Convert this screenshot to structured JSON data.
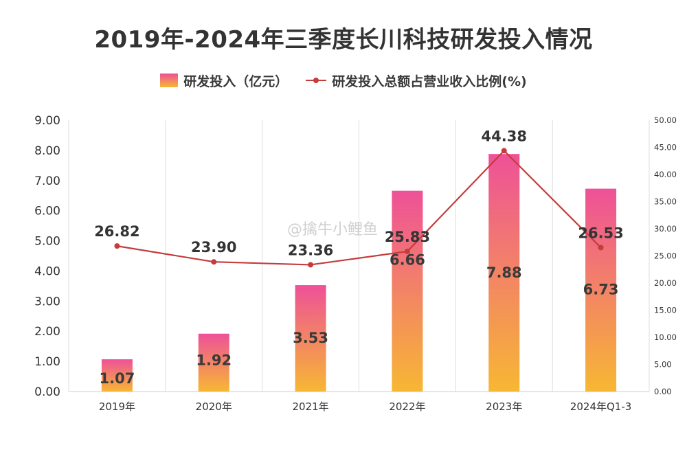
{
  "watermark": "@擒牛小鲤鱼",
  "chart_data": {
    "type": "bar",
    "title": "2019年-2024年三季度长川科技研发投入情况",
    "categories": [
      "2019年",
      "2020年",
      "2021年",
      "2022年",
      "2023年",
      "2024年Q1-3"
    ],
    "series": [
      {
        "name": "研发投入（亿元）",
        "type": "bar",
        "axis": "left",
        "values": [
          1.07,
          1.92,
          3.53,
          6.66,
          7.88,
          6.73
        ],
        "labels": [
          "1.07",
          "1.92",
          "3.53",
          "6.66",
          "7.88",
          "6.73"
        ],
        "colors": {
          "top": "#ee5198",
          "bottom": "#f7b733"
        }
      },
      {
        "name": "研发投入总额占营业收入比例(%)",
        "type": "line",
        "axis": "right",
        "values": [
          26.82,
          23.9,
          23.36,
          25.83,
          44.38,
          26.53
        ],
        "labels": [
          "26.82",
          "23.90",
          "23.36",
          "25.83",
          "44.38",
          "26.53"
        ],
        "color": "#c43c3c"
      }
    ],
    "y_left": {
      "ylim": [
        0,
        9
      ],
      "ticks": [
        "0.00",
        "1.00",
        "2.00",
        "3.00",
        "4.00",
        "5.00",
        "6.00",
        "7.00",
        "8.00",
        "9.00"
      ]
    },
    "y_right": {
      "ylim": [
        0,
        50
      ],
      "ticks": [
        "0.00",
        "5.00",
        "10.00",
        "15.00",
        "20.00",
        "25.00",
        "30.00",
        "35.00",
        "40.00",
        "45.00",
        "50.00"
      ]
    },
    "grid": "vertical",
    "legend_position": "top-center",
    "colors": {
      "grid": "#dddddd",
      "axis_text": "#333333"
    }
  }
}
